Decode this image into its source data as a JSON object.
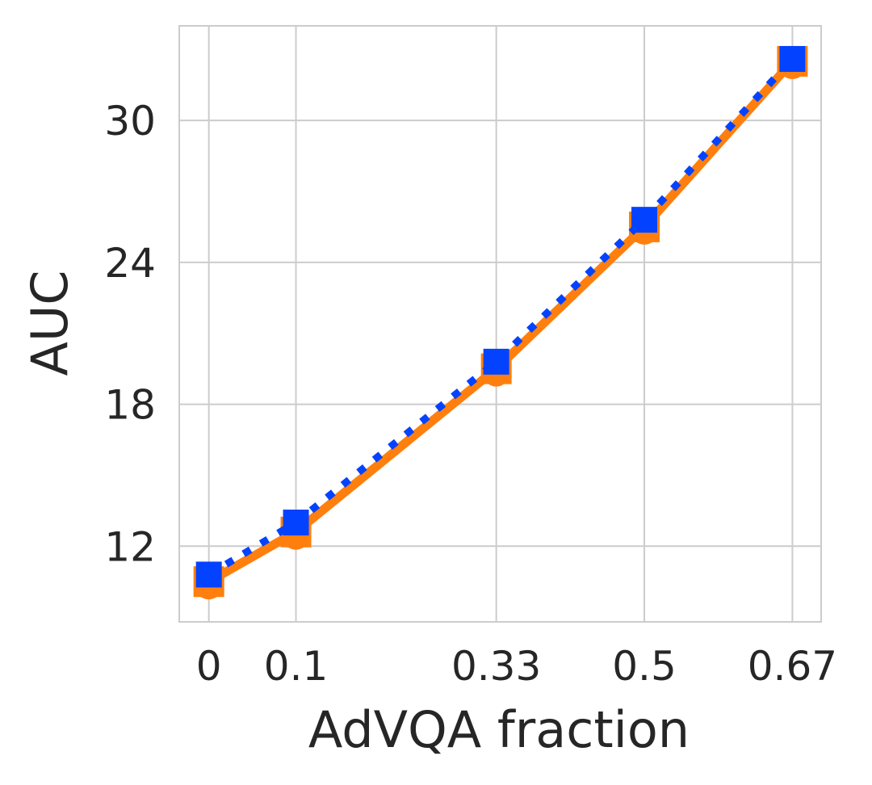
{
  "chart_data": {
    "type": "line",
    "title": "",
    "xlabel": "AdVQA fraction",
    "ylabel": "AUC",
    "x": [
      0,
      0.1,
      0.33,
      0.5,
      0.67
    ],
    "x_tick_labels": [
      "0",
      "0.1",
      "0.33",
      "0.5",
      "0.67"
    ],
    "y_ticks": [
      12,
      18,
      24,
      30
    ],
    "y_tick_labels": [
      "12",
      "18",
      "24",
      "30"
    ],
    "xlim": [
      -0.034,
      0.703
    ],
    "ylim": [
      8.8,
      34.0
    ],
    "grid": true,
    "legend": "none",
    "series": [
      {
        "style": "solid",
        "color": "#ff7f0e",
        "markers": [
          "circle",
          "square"
        ],
        "values": [
          10.5,
          12.6,
          19.5,
          25.5,
          32.5
        ]
      },
      {
        "style": "dotted",
        "color": "#0343ff",
        "markers": [
          "square"
        ],
        "values": [
          10.8,
          13.0,
          19.8,
          25.8,
          32.6
        ]
      }
    ]
  }
}
